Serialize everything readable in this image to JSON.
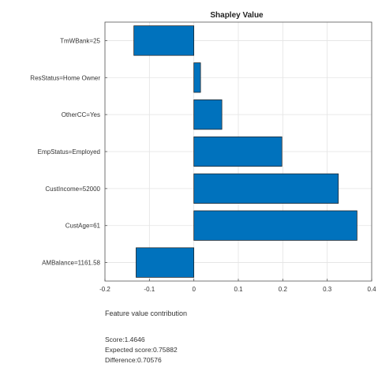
{
  "chart_data": {
    "type": "bar",
    "orientation": "horizontal",
    "title": "Shapley Value",
    "xlabel": "Feature value contribution",
    "ylabel": "",
    "categories": [
      "TmWBank=25",
      "ResStatus=Home Owner",
      "OtherCC=Yes",
      "EmpStatus=Employed",
      "CustIncome=52000",
      "CustAge=61",
      "AMBalance=1161.58"
    ],
    "values": [
      -0.135,
      0.015,
      0.063,
      0.198,
      0.325,
      0.367,
      -0.13
    ],
    "xlim": [
      -0.2,
      0.4
    ],
    "xticks": [
      -0.2,
      -0.1,
      0,
      0.1,
      0.2,
      0.3,
      0.4
    ],
    "xtick_labels": [
      "-0.2",
      "-0.1",
      "0",
      "0.1",
      "0.2",
      "0.3",
      "0.4"
    ],
    "grid": true,
    "bar_color": "#0072BD",
    "bar_edge_color": "#1a1a1a"
  },
  "summary": {
    "score": "Score:1.4646",
    "expected": "Expected score:0.75882",
    "difference": "Difference:0.70576"
  }
}
